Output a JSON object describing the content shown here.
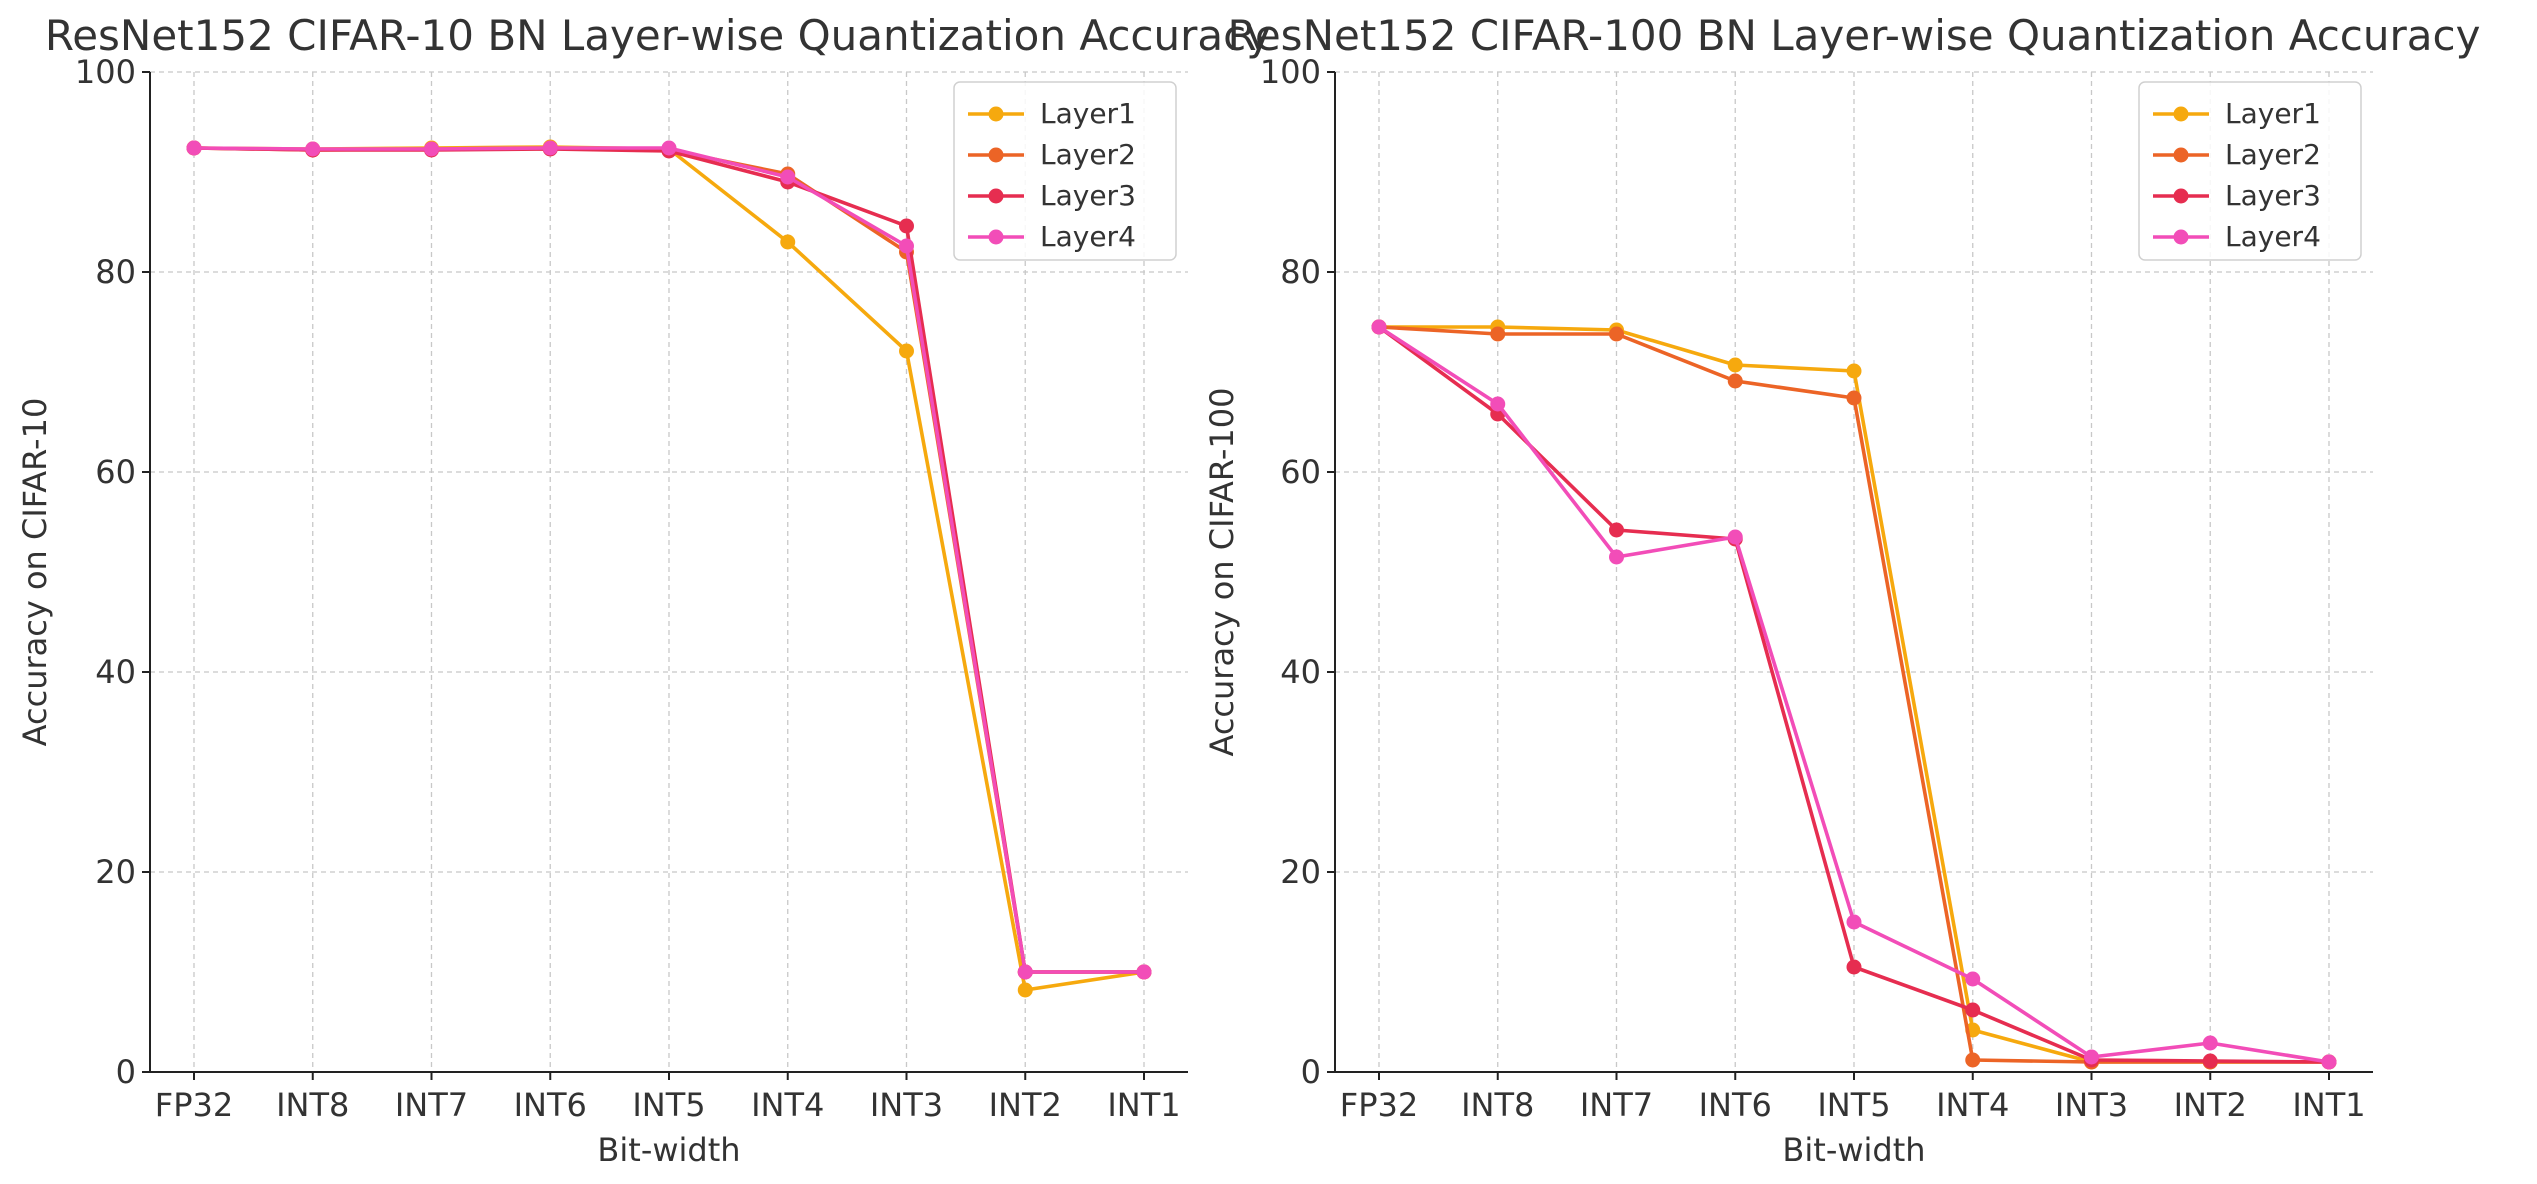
{
  "colors": {
    "Layer1": "#f6a90e",
    "Layer2": "#ec6426",
    "Layer3": "#e62d50",
    "Layer4": "#f24db8",
    "text": "#333333",
    "grid": "#c8c8c8"
  },
  "chart_data": [
    {
      "type": "line",
      "title": "ResNet152 CIFAR-10 BN Layer-wise Quantization Accuracy",
      "xlabel": "Bit-width",
      "ylabel": "Accuracy on CIFAR-10",
      "categories": [
        "FP32",
        "INT8",
        "INT7",
        "INT6",
        "INT5",
        "INT4",
        "INT3",
        "INT2",
        "INT1"
      ],
      "ylim": [
        0,
        100
      ],
      "yticks": [
        0,
        20,
        40,
        60,
        80,
        100
      ],
      "grid": true,
      "legend": "top-right",
      "series": [
        {
          "name": "Layer1",
          "values": [
            92.4,
            92.3,
            92.4,
            92.5,
            92.3,
            83.0,
            72.1,
            8.2,
            10.0
          ]
        },
        {
          "name": "Layer2",
          "values": [
            92.4,
            92.2,
            92.3,
            92.4,
            92.2,
            89.8,
            82.0,
            10.0,
            10.0
          ]
        },
        {
          "name": "Layer3",
          "values": [
            92.4,
            92.2,
            92.2,
            92.3,
            92.1,
            89.0,
            84.6,
            10.0,
            10.0
          ]
        },
        {
          "name": "Layer4",
          "values": [
            92.4,
            92.3,
            92.3,
            92.4,
            92.4,
            89.5,
            82.6,
            10.0,
            10.0
          ]
        }
      ]
    },
    {
      "type": "line",
      "title": "ResNet152 CIFAR-100 BN Layer-wise Quantization Accuracy",
      "xlabel": "Bit-width",
      "ylabel": "Accuracy on CIFAR-100",
      "categories": [
        "FP32",
        "INT8",
        "INT7",
        "INT6",
        "INT5",
        "INT4",
        "INT3",
        "INT2",
        "INT1"
      ],
      "ylim": [
        0,
        100
      ],
      "yticks": [
        0,
        20,
        40,
        60,
        80,
        100
      ],
      "grid": true,
      "legend": "top-right",
      "series": [
        {
          "name": "Layer1",
          "values": [
            74.5,
            74.5,
            74.2,
            70.7,
            70.1,
            4.2,
            1.0,
            1.0,
            1.0
          ]
        },
        {
          "name": "Layer2",
          "values": [
            74.5,
            73.8,
            73.8,
            69.1,
            67.4,
            1.2,
            1.0,
            1.0,
            1.0
          ]
        },
        {
          "name": "Layer3",
          "values": [
            74.5,
            65.8,
            54.2,
            53.3,
            10.5,
            6.2,
            1.2,
            1.1,
            1.0
          ]
        },
        {
          "name": "Layer4",
          "values": [
            74.5,
            66.8,
            51.5,
            53.5,
            15.0,
            9.3,
            1.5,
            2.9,
            1.0
          ]
        }
      ]
    }
  ]
}
